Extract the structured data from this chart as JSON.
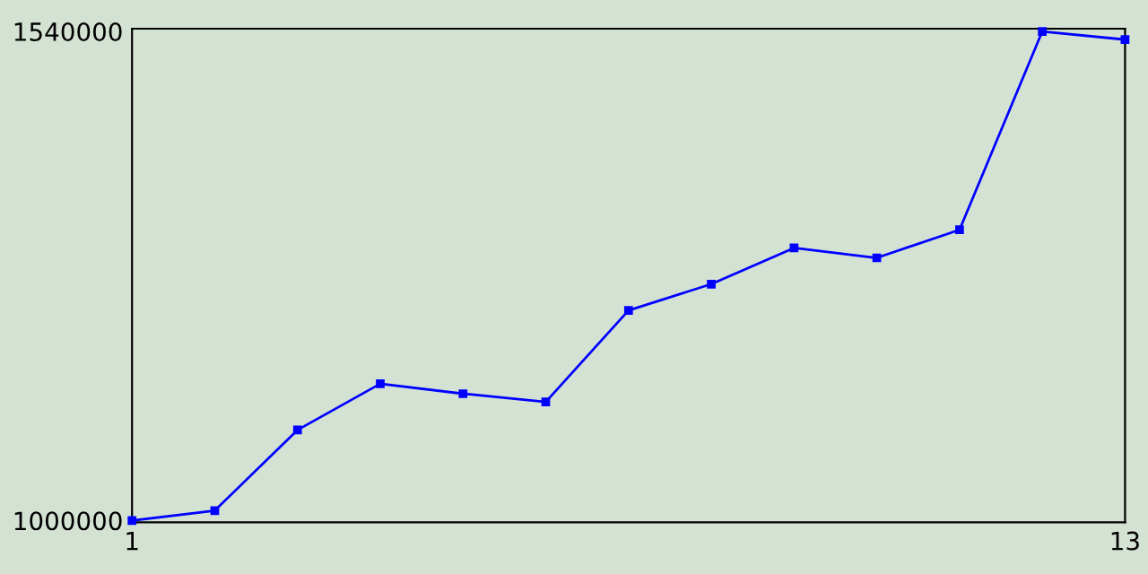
{
  "chart_data": {
    "type": "line",
    "x": [
      1,
      2,
      3,
      4,
      5,
      6,
      7,
      8,
      9,
      10,
      11,
      12,
      13
    ],
    "series": [
      {
        "color": "#0000ff",
        "values": [
          1000000,
          1011000,
          1100000,
          1151000,
          1140000,
          1131000,
          1232000,
          1261000,
          1301000,
          1290000,
          1321000,
          1540000,
          1531000
        ]
      }
    ],
    "xlim": [
      1,
      13
    ],
    "xticks": [
      1,
      13
    ],
    "ylim": [
      998000,
      1543000
    ],
    "yticks": [
      1000000,
      1540000
    ],
    "grid": false,
    "legend": false,
    "marker": "square",
    "line_style": "solid"
  }
}
